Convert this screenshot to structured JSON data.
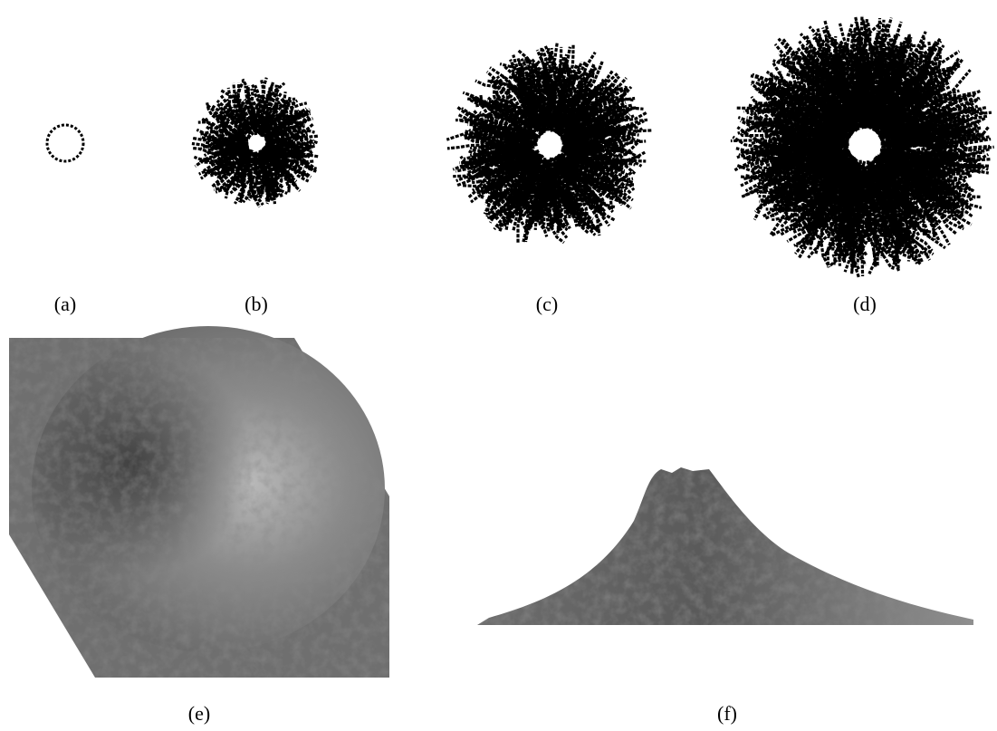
{
  "figure": {
    "panels": [
      {
        "label": "(a)"
      },
      {
        "label": "(b)"
      },
      {
        "label": "(c)"
      },
      {
        "label": "(d)"
      },
      {
        "label": "(e)"
      },
      {
        "label": "(f)"
      }
    ]
  }
}
